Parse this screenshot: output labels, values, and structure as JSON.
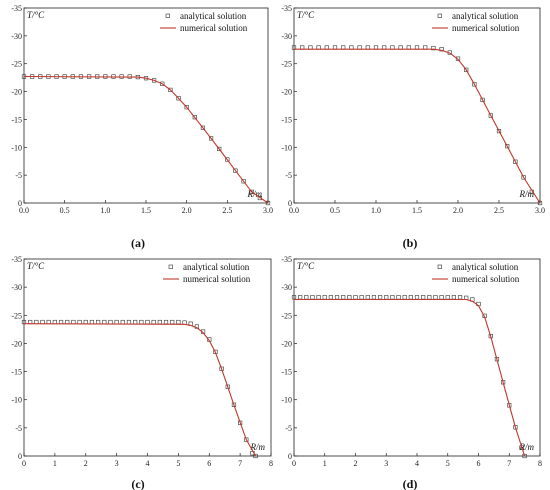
{
  "chart_data": [
    {
      "type": "line",
      "panel_label": "(a)",
      "ylabel": "T/°C",
      "xlabel": "R/m",
      "xlim": [
        0,
        3.0
      ],
      "ylim": [
        -35,
        0
      ],
      "y_inverted": true,
      "x_ticks": [
        "0.0",
        "0.5",
        "1.0",
        "1.5",
        "2.0",
        "2.5",
        "3.0"
      ],
      "y_ticks": [
        "-35",
        "-30",
        "-25",
        "-20",
        "-15",
        "-10",
        "-5",
        "0"
      ],
      "legend": [
        "analytical solution",
        "numerical solution"
      ],
      "legend_position": "top-right",
      "series": [
        {
          "name": "analytical solution",
          "style": "square-markers",
          "x": [
            0,
            0.1,
            0.2,
            0.3,
            0.4,
            0.5,
            0.6,
            0.7,
            0.8,
            0.9,
            1.0,
            1.1,
            1.2,
            1.3,
            1.4,
            1.5,
            1.6,
            1.7,
            1.8,
            1.9,
            2.0,
            2.1,
            2.2,
            2.3,
            2.4,
            2.5,
            2.6,
            2.7,
            2.8,
            2.9,
            3.0
          ],
          "y": [
            -22.7,
            -22.7,
            -22.7,
            -22.7,
            -22.7,
            -22.7,
            -22.7,
            -22.7,
            -22.7,
            -22.7,
            -22.7,
            -22.7,
            -22.7,
            -22.7,
            -22.6,
            -22.4,
            -22.0,
            -21.4,
            -20.3,
            -18.8,
            -17.2,
            -15.4,
            -13.5,
            -11.6,
            -9.7,
            -7.8,
            -5.8,
            -3.9,
            -2.0,
            -0.9,
            0
          ]
        },
        {
          "name": "numerical solution",
          "style": "line",
          "x": [
            0,
            1.4,
            1.5,
            1.6,
            1.7,
            1.8,
            1.9,
            2.0,
            2.2,
            2.4,
            2.6,
            2.8,
            3.0
          ],
          "y": [
            -22.7,
            -22.6,
            -22.4,
            -22.0,
            -21.4,
            -20.3,
            -18.8,
            -17.2,
            -13.5,
            -9.7,
            -5.8,
            -2.0,
            0
          ]
        }
      ]
    },
    {
      "type": "line",
      "panel_label": "(b)",
      "ylabel": "T/°C",
      "xlabel": "R/m",
      "xlim": [
        0,
        3.0
      ],
      "ylim": [
        -35,
        0
      ],
      "y_inverted": true,
      "x_ticks": [
        "0.0",
        "0.5",
        "1.0",
        "1.5",
        "2.0",
        "2.5",
        "3.0"
      ],
      "y_ticks": [
        "-35",
        "-30",
        "-25",
        "-20",
        "-15",
        "-10",
        "-5",
        "0"
      ],
      "legend": [
        "analytical solution",
        "numerical solution"
      ],
      "legend_position": "top-right",
      "series": [
        {
          "name": "analytical solution",
          "style": "square-markers",
          "x": [
            0,
            0.1,
            0.2,
            0.3,
            0.4,
            0.5,
            0.6,
            0.7,
            0.8,
            0.9,
            1.0,
            1.1,
            1.2,
            1.3,
            1.4,
            1.5,
            1.6,
            1.7,
            1.8,
            1.9,
            2.0,
            2.1,
            2.2,
            2.3,
            2.4,
            2.5,
            2.6,
            2.7,
            2.8,
            2.9,
            3.0
          ],
          "y": [
            -27.9,
            -27.9,
            -27.9,
            -27.9,
            -27.9,
            -27.9,
            -27.9,
            -27.9,
            -27.9,
            -27.9,
            -27.9,
            -27.9,
            -27.9,
            -27.9,
            -27.9,
            -27.9,
            -27.9,
            -27.8,
            -27.6,
            -27.0,
            -25.9,
            -23.9,
            -21.3,
            -18.5,
            -15.7,
            -12.9,
            -10.2,
            -7.4,
            -4.6,
            -2.0,
            0
          ]
        },
        {
          "name": "numerical solution",
          "style": "line",
          "x": [
            0,
            1.7,
            1.8,
            1.9,
            2.0,
            2.1,
            2.2,
            2.4,
            2.6,
            2.8,
            3.0
          ],
          "y": [
            -27.6,
            -27.6,
            -27.4,
            -26.9,
            -25.8,
            -23.9,
            -21.3,
            -15.7,
            -10.2,
            -4.6,
            0
          ]
        }
      ]
    },
    {
      "type": "line",
      "panel_label": "(c)",
      "ylabel": "T/°C",
      "xlabel": "R/m",
      "xlim": [
        0,
        8
      ],
      "ylim": [
        -35,
        0
      ],
      "y_inverted": true,
      "x_ticks": [
        "0",
        "1",
        "2",
        "3",
        "4",
        "5",
        "6",
        "7",
        "8"
      ],
      "y_ticks": [
        "-35",
        "-30",
        "-25",
        "-20",
        "-15",
        "-10",
        "-5",
        "0"
      ],
      "legend": [
        "analytical solution",
        "numerical solution"
      ],
      "legend_position": "top-right",
      "series": [
        {
          "name": "analytical solution",
          "style": "square-markers",
          "x": [
            0,
            0.2,
            0.4,
            0.6,
            0.8,
            1.0,
            1.2,
            1.4,
            1.6,
            1.8,
            2.0,
            2.2,
            2.4,
            2.6,
            2.8,
            3.0,
            3.2,
            3.4,
            3.6,
            3.8,
            4.0,
            4.2,
            4.4,
            4.6,
            4.8,
            5.0,
            5.2,
            5.4,
            5.6,
            5.8,
            6.0,
            6.2,
            6.4,
            6.6,
            6.8,
            7.0,
            7.2,
            7.4,
            7.5
          ],
          "y": [
            -23.8,
            -23.8,
            -23.8,
            -23.8,
            -23.8,
            -23.8,
            -23.8,
            -23.8,
            -23.8,
            -23.8,
            -23.8,
            -23.8,
            -23.8,
            -23.8,
            -23.8,
            -23.8,
            -23.8,
            -23.8,
            -23.8,
            -23.8,
            -23.8,
            -23.8,
            -23.8,
            -23.8,
            -23.8,
            -23.8,
            -23.7,
            -23.5,
            -23.0,
            -22.1,
            -20.7,
            -18.5,
            -15.5,
            -12.3,
            -9.1,
            -5.9,
            -2.9,
            -0.5,
            0
          ]
        },
        {
          "name": "numerical solution",
          "style": "line",
          "x": [
            0,
            5.2,
            5.4,
            5.6,
            5.8,
            6.0,
            6.2,
            6.4,
            6.8,
            7.2,
            7.5
          ],
          "y": [
            -23.5,
            -23.4,
            -23.2,
            -22.8,
            -21.9,
            -20.5,
            -18.4,
            -15.5,
            -9.1,
            -2.9,
            0
          ]
        }
      ]
    },
    {
      "type": "line",
      "panel_label": "(d)",
      "ylabel": "T/°C",
      "xlabel": "R/m",
      "xlim": [
        0,
        8
      ],
      "ylim": [
        -35,
        0
      ],
      "y_inverted": true,
      "x_ticks": [
        "0",
        "1",
        "2",
        "3",
        "4",
        "5",
        "6",
        "7",
        "8"
      ],
      "y_ticks": [
        "-35",
        "-30",
        "-25",
        "-20",
        "-15",
        "-10",
        "-5",
        "0"
      ],
      "legend": [
        "analytical solution",
        "numerical solution"
      ],
      "legend_position": "top-right",
      "series": [
        {
          "name": "analytical solution",
          "style": "square-markers",
          "x": [
            0,
            0.2,
            0.4,
            0.6,
            0.8,
            1.0,
            1.2,
            1.4,
            1.6,
            1.8,
            2.0,
            2.2,
            2.4,
            2.6,
            2.8,
            3.0,
            3.2,
            3.4,
            3.6,
            3.8,
            4.0,
            4.2,
            4.4,
            4.6,
            4.8,
            5.0,
            5.2,
            5.4,
            5.6,
            5.8,
            6.0,
            6.2,
            6.4,
            6.6,
            6.8,
            7.0,
            7.2,
            7.4,
            7.5
          ],
          "y": [
            -28.2,
            -28.2,
            -28.2,
            -28.2,
            -28.2,
            -28.2,
            -28.2,
            -28.2,
            -28.2,
            -28.2,
            -28.2,
            -28.2,
            -28.2,
            -28.2,
            -28.2,
            -28.2,
            -28.2,
            -28.2,
            -28.2,
            -28.2,
            -28.2,
            -28.2,
            -28.2,
            -28.2,
            -28.2,
            -28.2,
            -28.2,
            -28.2,
            -28.1,
            -27.8,
            -27.0,
            -24.9,
            -21.3,
            -17.2,
            -13.1,
            -9.0,
            -5.1,
            -1.5,
            0
          ]
        },
        {
          "name": "numerical solution",
          "style": "line",
          "x": [
            0,
            5.6,
            5.8,
            6.0,
            6.2,
            6.4,
            6.8,
            7.2,
            7.5
          ],
          "y": [
            -27.8,
            -27.8,
            -27.5,
            -26.7,
            -24.7,
            -21.2,
            -13.1,
            -5.1,
            0
          ]
        }
      ]
    }
  ]
}
